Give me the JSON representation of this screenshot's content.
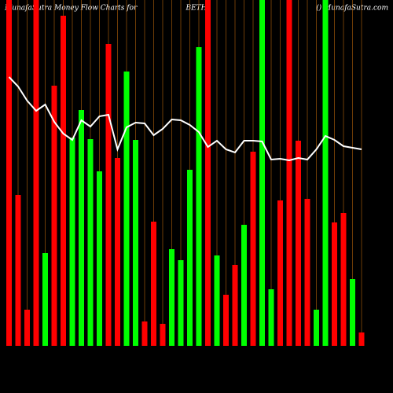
{
  "chart_data": {
    "type": "bar",
    "title_left": "MunafaSutra  Money Flow  Charts for",
    "title_center": "BETH",
    "title_right": "() MunafaSutra.com",
    "categories": [
      null,
      null,
      null,
      null,
      null,
      null,
      null,
      null,
      null,
      null,
      null,
      null,
      null,
      null,
      null,
      null,
      null,
      null,
      null,
      null,
      null,
      null,
      null,
      null,
      null,
      null,
      null,
      null,
      null,
      null,
      null,
      null,
      null,
      null,
      null,
      null,
      null,
      null,
      null,
      null
    ],
    "values": [
      460,
      192,
      46,
      460,
      118,
      331,
      420,
      265,
      300,
      263,
      222,
      384,
      239,
      349,
      262,
      31,
      158,
      28,
      123,
      109,
      224,
      380,
      460,
      115,
      65,
      103,
      154,
      247,
      460,
      72,
      185,
      460,
      261,
      187,
      46,
      460,
      157,
      169,
      85,
      17
    ],
    "bar_colors": [
      "#ff0000",
      "#ff0000",
      "#ff0000",
      "#ff0000",
      "#00ff00",
      "#ff0000",
      "#ff0000",
      "#00ff00",
      "#00ff00",
      "#00ff00",
      "#00ff00",
      "#ff0000",
      "#ff0000",
      "#00ff00",
      "#00ff00",
      "#ff0000",
      "#ff0000",
      "#ff0000",
      "#00ff00",
      "#00ff00",
      "#00ff00",
      "#00ff00",
      "#ff0000",
      "#00ff00",
      "#ff0000",
      "#ff0000",
      "#00ff00",
      "#ff0000",
      "#00ff00",
      "#00ff00",
      "#ff0000",
      "#ff0000",
      "#ff0000",
      "#ff0000",
      "#00ff00",
      "#00ff00",
      "#ff0000",
      "#ff0000",
      "#00ff00",
      "#ff0000"
    ],
    "line_values": [
      342,
      330,
      312,
      299,
      307,
      285,
      270,
      262,
      287,
      279,
      292,
      294,
      250,
      278,
      284,
      283,
      268,
      276,
      288,
      287,
      281,
      272,
      253,
      261,
      250,
      246,
      261,
      261,
      260,
      237,
      238,
      236,
      239,
      237,
      250,
      267,
      262,
      254,
      252,
      250
    ],
    "line_color": "#ffffff",
    "guide_color": "#b8660b"
  }
}
